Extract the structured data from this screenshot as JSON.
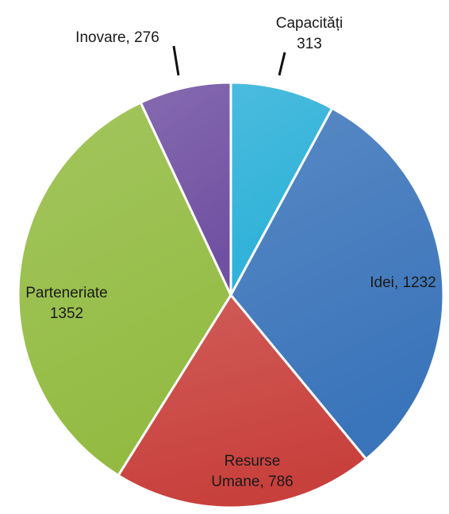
{
  "chart_data": {
    "type": "pie",
    "values": [
      313,
      1232,
      786,
      1352,
      276
    ],
    "value_labels": [
      [
        "Capacități",
        "313"
      ],
      [
        "Idei, 1232"
      ],
      [
        "Resurse",
        "Umane, 786"
      ],
      [
        "Parteneriate",
        "1352"
      ],
      [
        "Inovare, 276"
      ]
    ],
    "colors": [
      "#2bb0d8",
      "#3a74ba",
      "#c8403c",
      "#93bb42",
      "#7050a2"
    ],
    "start_angle": 0,
    "direction": "clockwise"
  }
}
